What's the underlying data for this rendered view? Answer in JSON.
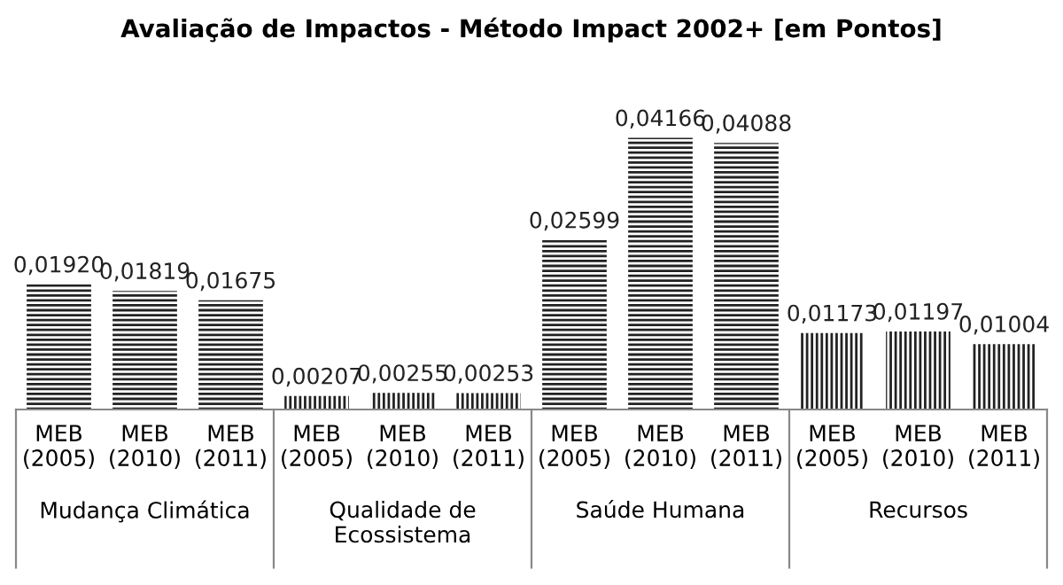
{
  "chart_data": {
    "type": "bar",
    "title": "Avaliação de Impactos - Método Impact 2002+ [em Pontos]",
    "categories": [
      "MEB\n(2005)",
      "MEB\n(2010)",
      "MEB\n(2011)",
      "MEB\n(2005)",
      "MEB\n(2010)",
      "MEB\n(2011)",
      "MEB\n(2005)",
      "MEB\n(2010)",
      "MEB\n(2011)",
      "MEB\n(2005)",
      "MEB\n(2010)",
      "MEB\n(2011)"
    ],
    "values": [
      0.0192,
      0.01819,
      0.01675,
      0.00207,
      0.00255,
      0.00253,
      0.02599,
      0.04166,
      0.04088,
      0.01173,
      0.01197,
      0.01004
    ],
    "value_labels": [
      "0,01920",
      "0,01819",
      "0,01675",
      "0,00207",
      "0,00255",
      "0,00253",
      "0,02599",
      "0,04166",
      "0,04088",
      "0,01173",
      "0,01197",
      "0,01004"
    ],
    "color": "#222222",
    "annotations": [
      "Mudança Climática",
      "Qualidade de\nEcossistema",
      "Saúde Humana",
      "Recursos"
    ],
    "grid": false,
    "legend": false
  }
}
